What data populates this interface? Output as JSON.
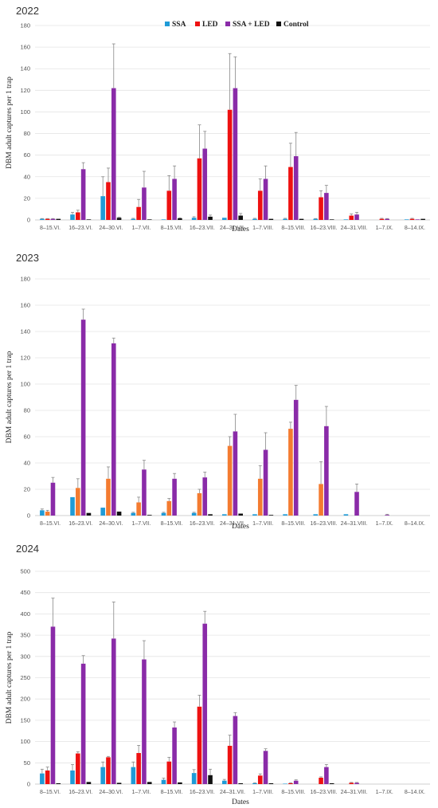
{
  "legend": [
    {
      "name": "SSA",
      "color": "#1f9bd7"
    },
    {
      "name": "LED",
      "color": "#ee1111"
    },
    {
      "name": "SSA + LED",
      "color": "#8a2ba8"
    },
    {
      "name": "Control",
      "color": "#111111"
    }
  ],
  "chart_data": [
    {
      "type": "bar",
      "title": "2022",
      "xlabel": "Dates",
      "ylabel": "DBM adult captures per 1 trap",
      "ylim": [
        0,
        180
      ],
      "ytick_step": 20,
      "legend_position": "top-center",
      "grid": true,
      "categories": [
        "8–15.VI.",
        "16–23.VI.",
        "24–30.VI.",
        "1–7.VII.",
        "8–15.VII.",
        "16–23.VII.",
        "24–31.VII.",
        "1–7.VIII.",
        "8–15.VIII.",
        "16–23.VIII.",
        "24–31.VIII.",
        "1–7.IX.",
        "8–14.IX."
      ],
      "series": [
        {
          "name": "SSA",
          "color": "#1f9bd7",
          "values": [
            1,
            5,
            22,
            1,
            0.5,
            2,
            2,
            1,
            1,
            1,
            0.5,
            0,
            0.5
          ],
          "errors": [
            0.3,
            2,
            18,
            0.5,
            0,
            1,
            0,
            0.5,
            0.5,
            0.3,
            0,
            0,
            0
          ]
        },
        {
          "name": "LED",
          "color": "#ee1111",
          "values": [
            1,
            7,
            35,
            12,
            27,
            57,
            102,
            27,
            49,
            21,
            4,
            1,
            1
          ],
          "errors": [
            0.3,
            2,
            13,
            7,
            14,
            31,
            52,
            11,
            22,
            6,
            1.5,
            0.5,
            0.5
          ]
        },
        {
          "name": "SSA + LED",
          "color": "#8a2ba8",
          "values": [
            1,
            47,
            122,
            30,
            38,
            66,
            122,
            38,
            59,
            25,
            5,
            1,
            0.5
          ],
          "errors": [
            0.3,
            6,
            41,
            15,
            12,
            16,
            29,
            12,
            22,
            7,
            2,
            0.3,
            0
          ]
        },
        {
          "name": "Control",
          "color": "#111111",
          "values": [
            1,
            0.5,
            2,
            0.5,
            1.5,
            3,
            4,
            1,
            1,
            0.5,
            0,
            0,
            1
          ],
          "errors": [
            0,
            0,
            0.5,
            0,
            0.5,
            1.5,
            2,
            0,
            0,
            0,
            0,
            0,
            0
          ]
        }
      ]
    },
    {
      "type": "bar",
      "title": "2023",
      "xlabel": "Dates",
      "ylabel": "DBM adult captures per 1 trap",
      "ylim": [
        0,
        180
      ],
      "ytick_step": 20,
      "grid": true,
      "categories": [
        "8–15.VI.",
        "16–23.VI.",
        "24–30.VI.",
        "1–7.VII.",
        "8–15.VII.",
        "16–23.VII.",
        "24–31.VII.",
        "1–7.VIII.",
        "8–15.VIII.",
        "16–23.VIII.",
        "24–31.VIII.",
        "1–7.IX.",
        "8–14.IX."
      ],
      "series": [
        {
          "name": "SSA",
          "color": "#1f9bd7",
          "values": [
            4,
            14,
            6,
            2,
            2,
            2,
            1,
            1,
            1,
            1,
            1,
            0,
            0
          ],
          "errors": [
            1,
            0,
            0,
            0.5,
            0.5,
            0.5,
            0,
            0,
            0,
            0,
            0,
            0,
            0
          ]
        },
        {
          "name": "LED",
          "color": "#f47b30",
          "values": [
            3,
            21,
            28,
            10,
            11,
            17,
            53,
            28,
            66,
            24,
            0,
            0,
            0
          ],
          "errors": [
            1,
            7,
            9,
            4,
            2,
            3,
            7,
            10,
            5,
            17,
            0,
            0,
            0
          ]
        },
        {
          "name": "SSA + LED",
          "color": "#8a2ba8",
          "values": [
            25,
            149,
            131,
            35,
            28,
            29,
            64,
            50,
            88,
            68,
            18,
            0.5,
            0
          ],
          "errors": [
            4,
            8,
            4,
            7,
            4,
            4,
            13,
            13,
            11,
            15,
            6,
            0.5,
            0
          ]
        },
        {
          "name": "Control",
          "color": "#111111",
          "values": [
            0,
            2,
            3,
            0.5,
            0,
            1,
            1.5,
            0.5,
            0,
            0,
            0,
            0,
            0
          ],
          "errors": [
            0,
            0,
            0,
            0,
            0,
            0,
            0,
            0,
            0,
            0,
            0,
            0,
            0
          ]
        }
      ]
    },
    {
      "type": "bar",
      "title": "2024",
      "xlabel": "Dates",
      "ylabel": "DBM adult captures per 1 trap",
      "ylim": [
        0,
        500
      ],
      "ytick_step": 50,
      "grid": true,
      "categories": [
        "8–15.VI.",
        "16–23.VI.",
        "24–30.VI.",
        "1–7.VII.",
        "8–15.VII.",
        "16–23.VII.",
        "24–31.VII.",
        "1–7.VIII.",
        "8–15.VIII.",
        "16–23.VIII.",
        "24–31.VIII.",
        "1–7.IX.",
        "8–14.IX."
      ],
      "series": [
        {
          "name": "SSA",
          "color": "#1f9bd7",
          "values": [
            25,
            32,
            40,
            40,
            10,
            26,
            8,
            2,
            1,
            0,
            0,
            0,
            0
          ],
          "errors": [
            10,
            14,
            12,
            12,
            4,
            8,
            3,
            1,
            0,
            0,
            0,
            0,
            0
          ]
        },
        {
          "name": "LED",
          "color": "#ee1111",
          "values": [
            32,
            72,
            63,
            73,
            53,
            182,
            90,
            20,
            2,
            15,
            3,
            0,
            0
          ],
          "errors": [
            8,
            4,
            2,
            18,
            10,
            27,
            25,
            4,
            1,
            2,
            1,
            0,
            0
          ]
        },
        {
          "name": "SSA + LED",
          "color": "#8a2ba8",
          "values": [
            370,
            283,
            342,
            293,
            133,
            377,
            160,
            78,
            8,
            40,
            3,
            0,
            0
          ],
          "errors": [
            67,
            19,
            86,
            44,
            13,
            29,
            8,
            5,
            2,
            6,
            1,
            0,
            0
          ]
        },
        {
          "name": "Control",
          "color": "#111111",
          "values": [
            2,
            5,
            3,
            5,
            4,
            21,
            2,
            2,
            0,
            2,
            0,
            0,
            0
          ],
          "errors": [
            0,
            0,
            0,
            0,
            0,
            14,
            0,
            0,
            0,
            0,
            0,
            0,
            0
          ]
        }
      ]
    }
  ]
}
